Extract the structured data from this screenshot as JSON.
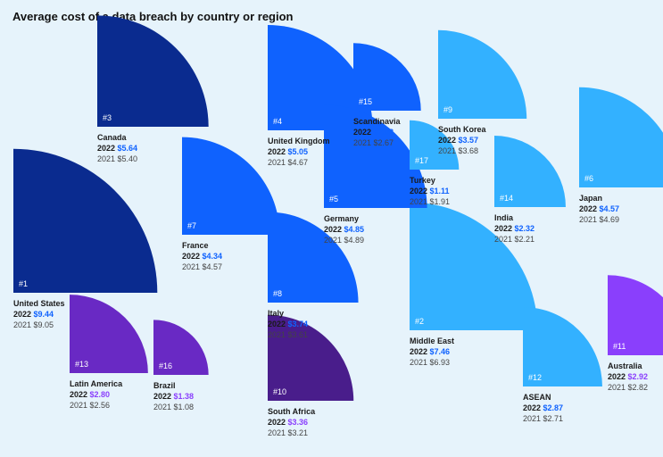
{
  "title": "Average cost of a data breach by country or region",
  "labels": {
    "year_current": "2022",
    "year_prior": "2021"
  },
  "colors": {
    "navy": "#0a2b8f",
    "blue": "#0f62fe",
    "sky": "#33b1ff",
    "purple": "#6929c4",
    "violet": "#8a3ffc",
    "darkpurple": "#491d8b",
    "blue_text": "#0f62fe",
    "purple_text": "#8a3ffc"
  },
  "chart_data": {
    "type": "quarter-circle area chart",
    "title": "Average cost of a data breach by country or region",
    "unit": "USD millions",
    "items": [
      {
        "rank": 1,
        "name": "United States",
        "value_2022": 9.44,
        "value_2021": 9.05,
        "color": "navy"
      },
      {
        "rank": 2,
        "name": "Middle East",
        "value_2022": 7.46,
        "value_2021": 6.93,
        "color": "sky"
      },
      {
        "rank": 3,
        "name": "Canada",
        "value_2022": 5.64,
        "value_2021": 5.4,
        "color": "navy"
      },
      {
        "rank": 4,
        "name": "United Kingdom",
        "value_2022": 5.05,
        "value_2021": 4.67,
        "color": "blue"
      },
      {
        "rank": 5,
        "name": "Germany",
        "value_2022": 4.85,
        "value_2021": 4.89,
        "color": "blue"
      },
      {
        "rank": 6,
        "name": "Japan",
        "value_2022": 4.57,
        "value_2021": 4.69,
        "color": "sky"
      },
      {
        "rank": 7,
        "name": "France",
        "value_2022": 4.34,
        "value_2021": 4.57,
        "color": "blue"
      },
      {
        "rank": 8,
        "name": "Italy",
        "value_2022": 3.74,
        "value_2021": 3.61,
        "color": "blue"
      },
      {
        "rank": 9,
        "name": "South Korea",
        "value_2022": 3.57,
        "value_2021": 3.68,
        "color": "sky"
      },
      {
        "rank": 10,
        "name": "South Africa",
        "value_2022": 3.36,
        "value_2021": 3.21,
        "color": "darkpurple"
      },
      {
        "rank": 11,
        "name": "Australia",
        "value_2022": 2.92,
        "value_2021": 2.82,
        "color": "violet"
      },
      {
        "rank": 12,
        "name": "ASEAN",
        "value_2022": 2.87,
        "value_2021": 2.71,
        "color": "sky"
      },
      {
        "rank": 13,
        "name": "Latin America",
        "value_2022": 2.8,
        "value_2021": 2.56,
        "color": "purple"
      },
      {
        "rank": 14,
        "name": "India",
        "value_2022": 2.32,
        "value_2021": 2.21,
        "color": "sky"
      },
      {
        "rank": 15,
        "name": "Scandinavia",
        "value_2022": 2.08,
        "value_2021": 2.67,
        "color": "blue"
      },
      {
        "rank": 16,
        "name": "Brazil",
        "value_2022": 1.38,
        "value_2021": 1.08,
        "color": "purple"
      },
      {
        "rank": 17,
        "name": "Turkey",
        "value_2022": 1.11,
        "value_2021": 1.91,
        "color": "sky"
      }
    ]
  }
}
